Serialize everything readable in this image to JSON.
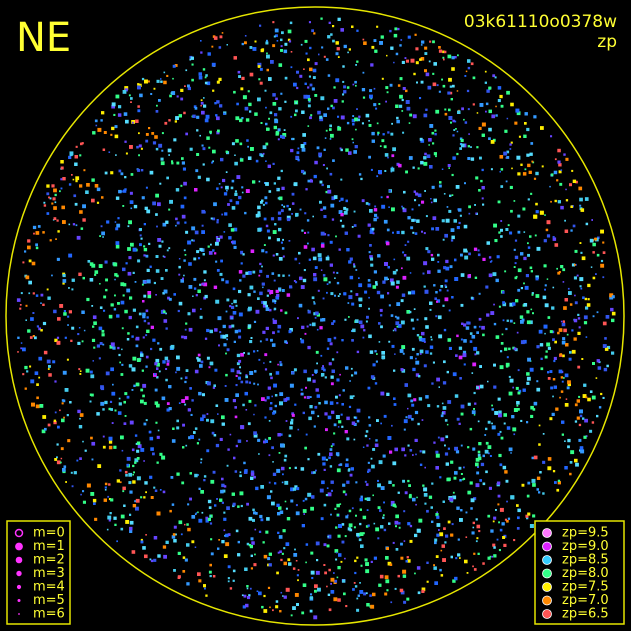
{
  "header": {
    "direction": "NE",
    "frame_id": "03k61110o0378w",
    "quantity": "zp"
  },
  "magnitude_legend": [
    "m=0",
    "m=1",
    "m=2",
    "m=3",
    "m=4",
    "m=5",
    "m=6"
  ],
  "zp_legend": [
    {
      "label": "zp=9.5",
      "color": "#ff77ff"
    },
    {
      "label": "zp=9.0",
      "color": "#dd22ff"
    },
    {
      "label": "zp=8.5",
      "color": "#33ccff"
    },
    {
      "label": "zp=8.0",
      "color": "#33ff88"
    },
    {
      "label": "zp=7.5",
      "color": "#ffee00"
    },
    {
      "label": "zp=7.0",
      "color": "#ff8800"
    },
    {
      "label": "zp=6.5",
      "color": "#ff5555"
    }
  ]
}
